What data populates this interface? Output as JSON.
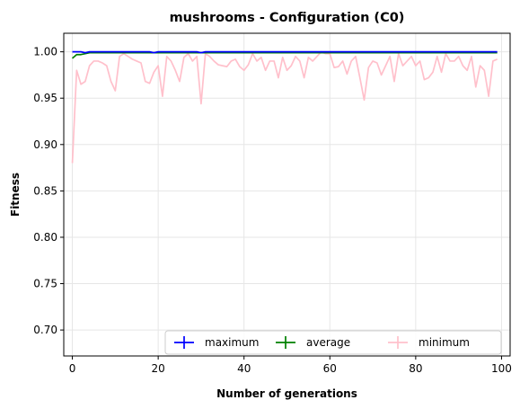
{
  "chart_data": {
    "type": "line",
    "title": "mushrooms - Configuration (C0)",
    "xlabel": "Number of generations",
    "ylabel": "Fitness",
    "xlim": [
      -2,
      102
    ],
    "ylim": [
      0.672,
      1.02
    ],
    "xticks": [
      0,
      20,
      40,
      60,
      80,
      100
    ],
    "yticks": [
      0.7,
      0.75,
      0.8,
      0.85,
      0.9,
      0.95,
      1.0
    ],
    "xtick_labels": [
      "0",
      "20",
      "40",
      "60",
      "80",
      "100"
    ],
    "ytick_labels": [
      "0.70",
      "0.75",
      "0.80",
      "0.85",
      "0.90",
      "0.95",
      "1.00"
    ],
    "grid": true,
    "legend_position": "lower-right",
    "x": [
      0,
      1,
      2,
      3,
      4,
      5,
      6,
      7,
      8,
      9,
      10,
      11,
      12,
      13,
      14,
      15,
      16,
      17,
      18,
      19,
      20,
      21,
      22,
      23,
      24,
      25,
      26,
      27,
      28,
      29,
      30,
      31,
      32,
      33,
      34,
      35,
      36,
      37,
      38,
      39,
      40,
      41,
      42,
      43,
      44,
      45,
      46,
      47,
      48,
      49,
      50,
      51,
      52,
      53,
      54,
      55,
      56,
      57,
      58,
      59,
      60,
      61,
      62,
      63,
      64,
      65,
      66,
      67,
      68,
      69,
      70,
      71,
      72,
      73,
      74,
      75,
      76,
      77,
      78,
      79,
      80,
      81,
      82,
      83,
      84,
      85,
      86,
      87,
      88,
      89,
      90,
      91,
      92,
      93,
      94,
      95,
      96,
      97,
      98,
      99
    ],
    "series": [
      {
        "name": "maximum",
        "color": "#0000ff",
        "values": [
          1.0,
          1.0,
          1.0,
          0.999,
          1.0,
          1.0,
          1.0,
          1.0,
          1.0,
          1.0,
          1.0,
          1.0,
          1.0,
          1.0,
          1.0,
          1.0,
          1.0,
          1.0,
          1.0,
          0.999,
          1.0,
          1.0,
          1.0,
          1.0,
          1.0,
          1.0,
          1.0,
          1.0,
          1.0,
          1.0,
          0.999,
          1.0,
          1.0,
          1.0,
          1.0,
          1.0,
          1.0,
          1.0,
          1.0,
          1.0,
          1.0,
          1.0,
          1.0,
          1.0,
          1.0,
          1.0,
          1.0,
          1.0,
          1.0,
          1.0,
          1.0,
          1.0,
          1.0,
          1.0,
          1.0,
          1.0,
          1.0,
          1.0,
          1.0,
          1.0,
          1.0,
          1.0,
          1.0,
          1.0,
          1.0,
          1.0,
          1.0,
          1.0,
          1.0,
          1.0,
          1.0,
          1.0,
          1.0,
          1.0,
          1.0,
          1.0,
          1.0,
          1.0,
          1.0,
          1.0,
          1.0,
          1.0,
          1.0,
          1.0,
          1.0,
          1.0,
          1.0,
          1.0,
          1.0,
          1.0,
          1.0,
          1.0,
          1.0,
          1.0,
          1.0,
          1.0,
          1.0,
          1.0,
          1.0,
          1.0
        ]
      },
      {
        "name": "average",
        "color": "#008000",
        "values": [
          0.993,
          0.997,
          0.997,
          0.998,
          0.999,
          0.999,
          0.999,
          0.999,
          0.999,
          0.999,
          0.999,
          0.999,
          0.999,
          0.999,
          0.999,
          0.999,
          0.999,
          0.999,
          0.999,
          0.999,
          0.999,
          0.999,
          0.999,
          0.999,
          0.999,
          0.999,
          0.999,
          0.999,
          0.999,
          0.999,
          0.999,
          0.999,
          0.999,
          0.999,
          0.999,
          0.999,
          0.999,
          0.999,
          0.999,
          0.999,
          0.999,
          0.999,
          0.999,
          0.999,
          0.999,
          0.999,
          0.999,
          0.999,
          0.999,
          0.999,
          0.999,
          0.999,
          0.999,
          0.999,
          0.999,
          0.999,
          0.999,
          0.999,
          0.999,
          0.999,
          0.999,
          0.999,
          0.999,
          0.999,
          0.999,
          0.999,
          0.999,
          0.999,
          0.999,
          0.999,
          0.999,
          0.999,
          0.999,
          0.999,
          0.999,
          0.999,
          0.999,
          0.999,
          0.999,
          0.999,
          0.999,
          0.999,
          0.999,
          0.999,
          0.999,
          0.999,
          0.999,
          0.999,
          0.999,
          0.999,
          0.999,
          0.999,
          0.999,
          0.999,
          0.999,
          0.999,
          0.999,
          0.999,
          0.999,
          0.999
        ]
      },
      {
        "name": "minimum",
        "color": "#ffc0cb",
        "values": [
          0.88,
          0.98,
          0.965,
          0.968,
          0.985,
          0.99,
          0.99,
          0.988,
          0.985,
          0.968,
          0.958,
          0.995,
          0.998,
          0.995,
          0.992,
          0.99,
          0.988,
          0.968,
          0.966,
          0.978,
          0.985,
          0.952,
          0.995,
          0.99,
          0.98,
          0.968,
          0.994,
          0.998,
          0.99,
          0.995,
          0.944,
          0.998,
          0.995,
          0.99,
          0.986,
          0.985,
          0.984,
          0.99,
          0.992,
          0.984,
          0.98,
          0.986,
          0.998,
          0.99,
          0.994,
          0.98,
          0.99,
          0.99,
          0.972,
          0.994,
          0.98,
          0.985,
          0.995,
          0.99,
          0.972,
          0.994,
          0.99,
          0.995,
          1.0,
          0.998,
          0.998,
          0.983,
          0.984,
          0.99,
          0.976,
          0.99,
          0.995,
          0.972,
          0.948,
          0.983,
          0.99,
          0.988,
          0.975,
          0.985,
          0.995,
          0.968,
          0.998,
          0.985,
          0.99,
          0.995,
          0.985,
          0.99,
          0.97,
          0.972,
          0.978,
          0.995,
          0.978,
          0.998,
          0.99,
          0.99,
          0.995,
          0.985,
          0.98,
          0.995,
          0.962,
          0.985,
          0.98,
          0.952,
          0.99,
          0.992
        ]
      }
    ]
  }
}
